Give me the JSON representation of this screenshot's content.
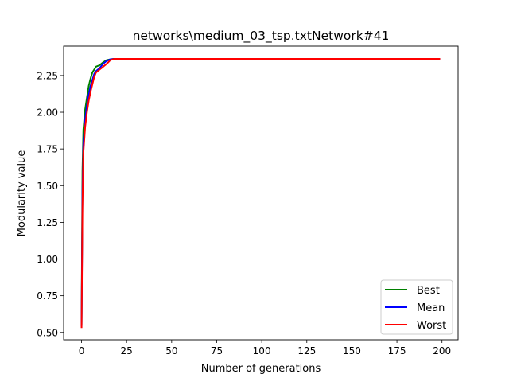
{
  "chart_data": {
    "type": "line",
    "title": "networks\\medium_03_tsp.txtNetwork#41",
    "xlabel": "Number of generations",
    "ylabel": "Modularity value",
    "xlim": [
      -9.95,
      208.95
    ],
    "ylim": [
      0.45,
      2.45
    ],
    "xticks": [
      0,
      25,
      50,
      75,
      100,
      125,
      150,
      175,
      200
    ],
    "yticks": [
      0.5,
      0.75,
      1.0,
      1.25,
      1.5,
      1.75,
      2.0,
      2.25
    ],
    "ytick_labels": [
      "0.50",
      "0.75",
      "1.00",
      "1.25",
      "1.50",
      "1.75",
      "2.00",
      "2.25"
    ],
    "grid": false,
    "legend_position": "lower right",
    "series": [
      {
        "name": "Best",
        "color": "#008000",
        "x": [
          0,
          0.5,
          1,
          2,
          3,
          4,
          5,
          6,
          7,
          8,
          10,
          12,
          14,
          16,
          18,
          20,
          199
        ],
        "y": [
          0.55,
          1.6,
          1.88,
          2.02,
          2.1,
          2.18,
          2.23,
          2.27,
          2.29,
          2.31,
          2.32,
          2.34,
          2.355,
          2.36,
          2.363,
          2.363,
          2.363
        ]
      },
      {
        "name": "Mean",
        "color": "#0000ff",
        "x": [
          0,
          0.5,
          1,
          2,
          3,
          4,
          5,
          6,
          7,
          8,
          10,
          12,
          14,
          16,
          18,
          20,
          199
        ],
        "y": [
          0.54,
          1.45,
          1.78,
          1.95,
          2.05,
          2.12,
          2.18,
          2.22,
          2.26,
          2.28,
          2.3,
          2.33,
          2.35,
          2.36,
          2.363,
          2.363,
          2.363
        ]
      },
      {
        "name": "Worst",
        "color": "#ff0000",
        "x": [
          0,
          0.5,
          1,
          2,
          3,
          4,
          5,
          6,
          7,
          8,
          10,
          12,
          14,
          16,
          18,
          20,
          199
        ],
        "y": [
          0.53,
          1.35,
          1.72,
          1.9,
          2.0,
          2.08,
          2.14,
          2.19,
          2.24,
          2.27,
          2.29,
          2.31,
          2.33,
          2.355,
          2.363,
          2.363,
          2.363
        ]
      }
    ]
  }
}
